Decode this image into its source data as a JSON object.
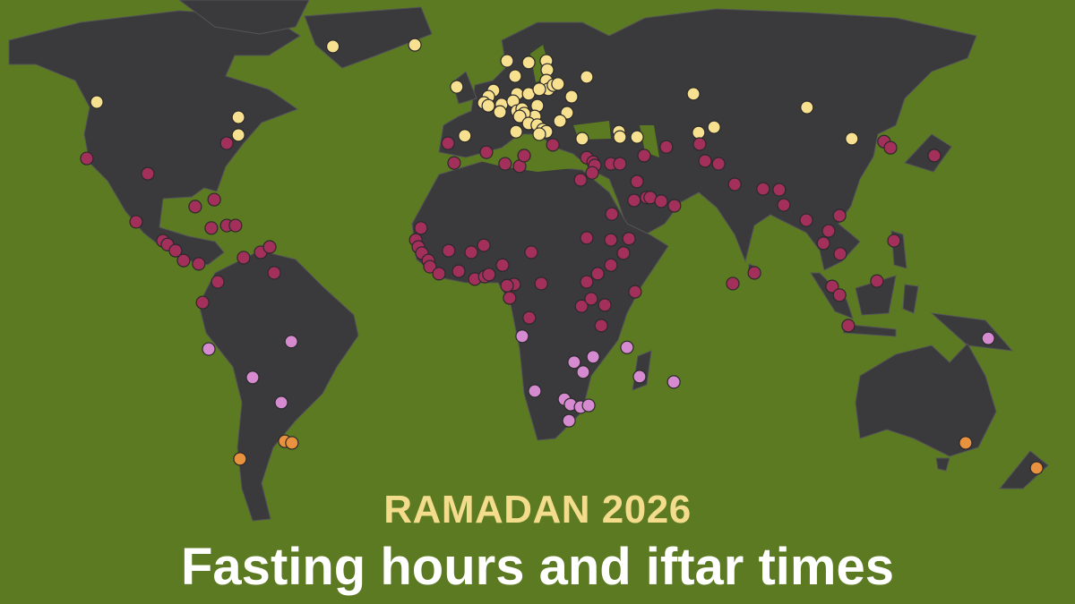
{
  "title": {
    "kicker": "RAMADAN 2026",
    "headline": "Fasting hours and iftar times"
  },
  "colors": {
    "background": "#5b7a22",
    "land": "#3a3a3c",
    "kicker": "#f3dc8b",
    "headline": "#ffffff"
  },
  "map": {
    "projection": "world",
    "marker_groups": [
      {
        "color": "#f7e08f",
        "points": [
          [
            -49,
            62.4
          ],
          [
            -23.6,
            62.8
          ],
          [
            -122.2,
            48.9
          ],
          [
            -78.3,
            45.2
          ],
          [
            -78.3,
            40.9
          ],
          [
            -10.6,
            52.6
          ],
          [
            5,
            58.9
          ],
          [
            11.7,
            58.5
          ],
          [
            17.2,
            58.9
          ],
          [
            17.5,
            56.7
          ],
          [
            17.2,
            54.1
          ],
          [
            17.8,
            52
          ],
          [
            19.4,
            53
          ],
          [
            20.8,
            53.3
          ],
          [
            25,
            50.2
          ],
          [
            23.6,
            46.3
          ],
          [
            21.4,
            44.3
          ],
          [
            29.7,
            55
          ],
          [
            7.5,
            55.2
          ],
          [
            8.1,
            50.9
          ],
          [
            0.8,
            51.7
          ],
          [
            -0.8,
            50.2
          ],
          [
            -2.2,
            48.7
          ],
          [
            -0.8,
            48
          ],
          [
            3.3,
            48.3
          ],
          [
            2.8,
            46.5
          ],
          [
            6.9,
            49.1
          ],
          [
            8.1,
            46.7
          ],
          [
            9.7,
            47.2
          ],
          [
            11.7,
            50.9
          ],
          [
            15,
            52
          ],
          [
            14.4,
            48
          ],
          [
            13.6,
            45.4
          ],
          [
            10.3,
            46.1
          ],
          [
            8.9,
            45.4
          ],
          [
            11.7,
            43.7
          ],
          [
            14.4,
            43.3
          ],
          [
            16.1,
            42.2
          ],
          [
            17.2,
            41.7
          ],
          [
            15,
            41.1
          ],
          [
            7.8,
            41.7
          ],
          [
            -8.1,
            40.7
          ],
          [
            28.3,
            40
          ],
          [
            39.7,
            41.7
          ],
          [
            40,
            40.4
          ],
          [
            45.3,
            40.4
          ],
          [
            62.8,
            50.9
          ],
          [
            98,
            47.6
          ],
          [
            64.4,
            41.5
          ],
          [
            69.2,
            42.8
          ],
          [
            111.9,
            40
          ]
        ]
      },
      {
        "color": "#a3305a",
        "points": [
          [
            -81.9,
            38.9
          ],
          [
            -125.3,
            35.2
          ],
          [
            -106.4,
            31.5
          ],
          [
            -85.8,
            25.2
          ],
          [
            -91.7,
            23.5
          ],
          [
            -110,
            19.8
          ],
          [
            -86.7,
            18.3
          ],
          [
            -81.9,
            18.9
          ],
          [
            -79.2,
            18.9
          ],
          [
            -101.7,
            15.2
          ],
          [
            -100.3,
            14.3
          ],
          [
            -97.8,
            12.8
          ],
          [
            -95.3,
            10.4
          ],
          [
            -90.6,
            9.6
          ],
          [
            -76.7,
            11.1
          ],
          [
            -71.4,
            12.4
          ],
          [
            -68.6,
            13.7
          ],
          [
            -84.7,
            5.2
          ],
          [
            -67.2,
            7.4
          ],
          [
            -89.4,
            0.2
          ],
          [
            -13.3,
            38.9
          ],
          [
            -11.4,
            34.1
          ],
          [
            -1.4,
            36.7
          ],
          [
            4.4,
            33.9
          ],
          [
            8.9,
            33.3
          ],
          [
            10.3,
            35.9
          ],
          [
            19.2,
            38.5
          ],
          [
            29.7,
            35.4
          ],
          [
            31.7,
            34.3
          ],
          [
            32.2,
            33.5
          ],
          [
            31.4,
            31.7
          ],
          [
            27.8,
            30
          ],
          [
            37.2,
            33.9
          ],
          [
            40,
            33.9
          ],
          [
            47.5,
            35.9
          ],
          [
            54.4,
            38
          ],
          [
            64.7,
            38.7
          ],
          [
            66.4,
            34.6
          ],
          [
            70.6,
            33.9
          ],
          [
            45.3,
            29.6
          ],
          [
            44.4,
            25
          ],
          [
            48.3,
            25.7
          ],
          [
            49.4,
            25.7
          ],
          [
            52.8,
            24.8
          ],
          [
            56.9,
            23.7
          ],
          [
            37.5,
            21.7
          ],
          [
            75.6,
            28.9
          ],
          [
            84.4,
            27.8
          ],
          [
            89.4,
            27.6
          ],
          [
            90.8,
            23.9
          ],
          [
            97.8,
            20.2
          ],
          [
            103.1,
            14.6
          ],
          [
            104.7,
            17.6
          ],
          [
            108.1,
            21.3
          ],
          [
            108.3,
            12
          ],
          [
            105.8,
            4.1
          ],
          [
            108.1,
            2
          ],
          [
            110.8,
            -5.4
          ],
          [
            119.7,
            5.4
          ],
          [
            125,
            15.2
          ],
          [
            121.9,
            39.3
          ],
          [
            123.9,
            37.8
          ],
          [
            137.5,
            35.9
          ],
          [
            81.7,
            7.4
          ],
          [
            75,
            4.8
          ],
          [
            -21.7,
            18.3
          ],
          [
            -23.3,
            15.4
          ],
          [
            -22.5,
            13.7
          ],
          [
            -21.4,
            12.2
          ],
          [
            -19.4,
            10.4
          ],
          [
            -18.9,
            8.9
          ],
          [
            -16.1,
            7.2
          ],
          [
            -13.1,
            12.8
          ],
          [
            -10,
            7.8
          ],
          [
            -6.1,
            12.4
          ],
          [
            -5,
            5.9
          ],
          [
            -2.2,
            14.1
          ],
          [
            -1.9,
            6.5
          ],
          [
            -0.6,
            7
          ],
          [
            3.6,
            9.3
          ],
          [
            12.5,
            12.4
          ],
          [
            7.2,
            4.6
          ],
          [
            5,
            4.3
          ],
          [
            5.8,
            1.3
          ],
          [
            11.9,
            -3.5
          ],
          [
            15.6,
            4.8
          ],
          [
            29.7,
            15.9
          ],
          [
            37.2,
            15.4
          ],
          [
            42.8,
            15.7
          ],
          [
            41.1,
            12.2
          ],
          [
            37.2,
            9.3
          ],
          [
            29.7,
            5.2
          ],
          [
            33.1,
            7.2
          ],
          [
            28.1,
            -0.7
          ],
          [
            31.1,
            1.1
          ],
          [
            35.3,
            -0.4
          ],
          [
            34.2,
            -5.4
          ],
          [
            44.7,
            2.8
          ]
        ]
      },
      {
        "color": "#d68bd0",
        "points": [
          [
            -87.5,
            -11.1
          ],
          [
            -61.9,
            -9.3
          ],
          [
            9.7,
            -8
          ],
          [
            -73.9,
            -18
          ],
          [
            -65,
            -24.1
          ],
          [
            42.2,
            -10.7
          ],
          [
            31.7,
            -13
          ],
          [
            25.8,
            -14.3
          ],
          [
            28.6,
            -16.7
          ],
          [
            46.1,
            -17.8
          ],
          [
            56.7,
            -19.1
          ],
          [
            13.6,
            -21.3
          ],
          [
            22.8,
            -23.3
          ],
          [
            24.7,
            -24.6
          ],
          [
            27.8,
            -25.2
          ],
          [
            30.3,
            -24.8
          ],
          [
            24.2,
            -28.5
          ],
          [
            154.2,
            -8.5
          ]
        ]
      },
      {
        "color": "#e8913e",
        "points": [
          [
            -77.8,
            -37.8
          ],
          [
            -63.9,
            -33.5
          ],
          [
            -61.7,
            -33.9
          ],
          [
            147.2,
            -33.9
          ],
          [
            169.2,
            -40
          ]
        ]
      }
    ]
  }
}
